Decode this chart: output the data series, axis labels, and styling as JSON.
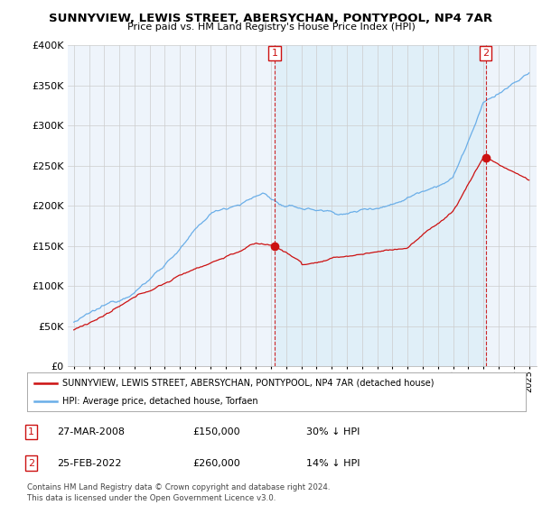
{
  "title": "SUNNYVIEW, LEWIS STREET, ABERSYCHAN, PONTYPOOL, NP4 7AR",
  "subtitle": "Price paid vs. HM Land Registry's House Price Index (HPI)",
  "legend_line1": "SUNNYVIEW, LEWIS STREET, ABERSYCHAN, PONTYPOOL, NP4 7AR (detached house)",
  "legend_line2": "HPI: Average price, detached house, Torfaen",
  "transaction1_date": "27-MAR-2008",
  "transaction1_price": "£150,000",
  "transaction1_hpi": "30% ↓ HPI",
  "transaction2_date": "25-FEB-2022",
  "transaction2_price": "£260,000",
  "transaction2_hpi": "14% ↓ HPI",
  "footer": "Contains HM Land Registry data © Crown copyright and database right 2024.\nThis data is licensed under the Open Government Licence v3.0.",
  "ylim": [
    0,
    400000
  ],
  "yticks": [
    0,
    50000,
    100000,
    150000,
    200000,
    250000,
    300000,
    350000,
    400000
  ],
  "ytick_labels": [
    "£0",
    "£50K",
    "£100K",
    "£150K",
    "£200K",
    "£250K",
    "£300K",
    "£350K",
    "£400K"
  ],
  "hpi_color": "#6aaee8",
  "hpi_fill_color": "#ddeeff",
  "property_color": "#cc1111",
  "transaction_color": "#cc1111",
  "marker_border_color": "#cc1111",
  "grid_color": "#cccccc",
  "background_color": "#ffffff",
  "t1": 2008.23,
  "t2": 2022.15,
  "prop_price1": 150000,
  "prop_price2": 260000
}
